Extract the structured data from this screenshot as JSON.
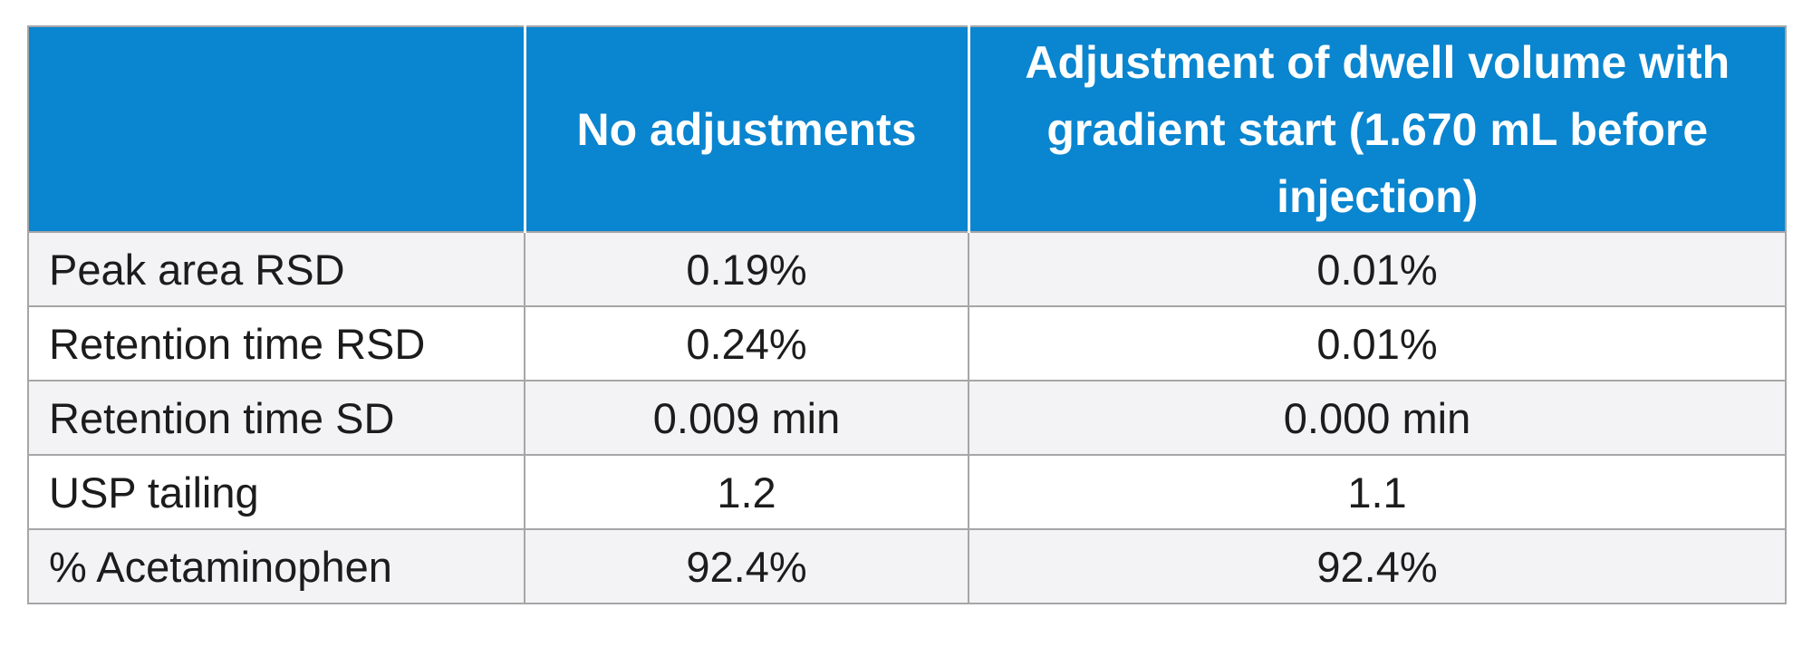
{
  "table": {
    "headers": [
      "",
      "No adjustments",
      "Adjustment of dwell volume with gradient start (1.670 mL before injection)"
    ],
    "rows": [
      {
        "label": "Peak area RSD",
        "no_adjustments": "0.19%",
        "adjusted": "0.01%"
      },
      {
        "label": "Retention time RSD",
        "no_adjustments": "0.24%",
        "adjusted": "0.01%"
      },
      {
        "label": "Retention time SD",
        "no_adjustments": "0.009 min",
        "adjusted": "0.000 min"
      },
      {
        "label": "USP tailing",
        "no_adjustments": "1.2",
        "adjusted": "1.1"
      },
      {
        "label": "% Acetaminophen",
        "no_adjustments": "92.4%",
        "adjusted": "92.4%"
      }
    ]
  },
  "colors": {
    "header_background": "#0a85cf",
    "header_text": "#ffffff",
    "row_shade": "#f3f3f5",
    "grid_lines": "#a6a6a6"
  }
}
